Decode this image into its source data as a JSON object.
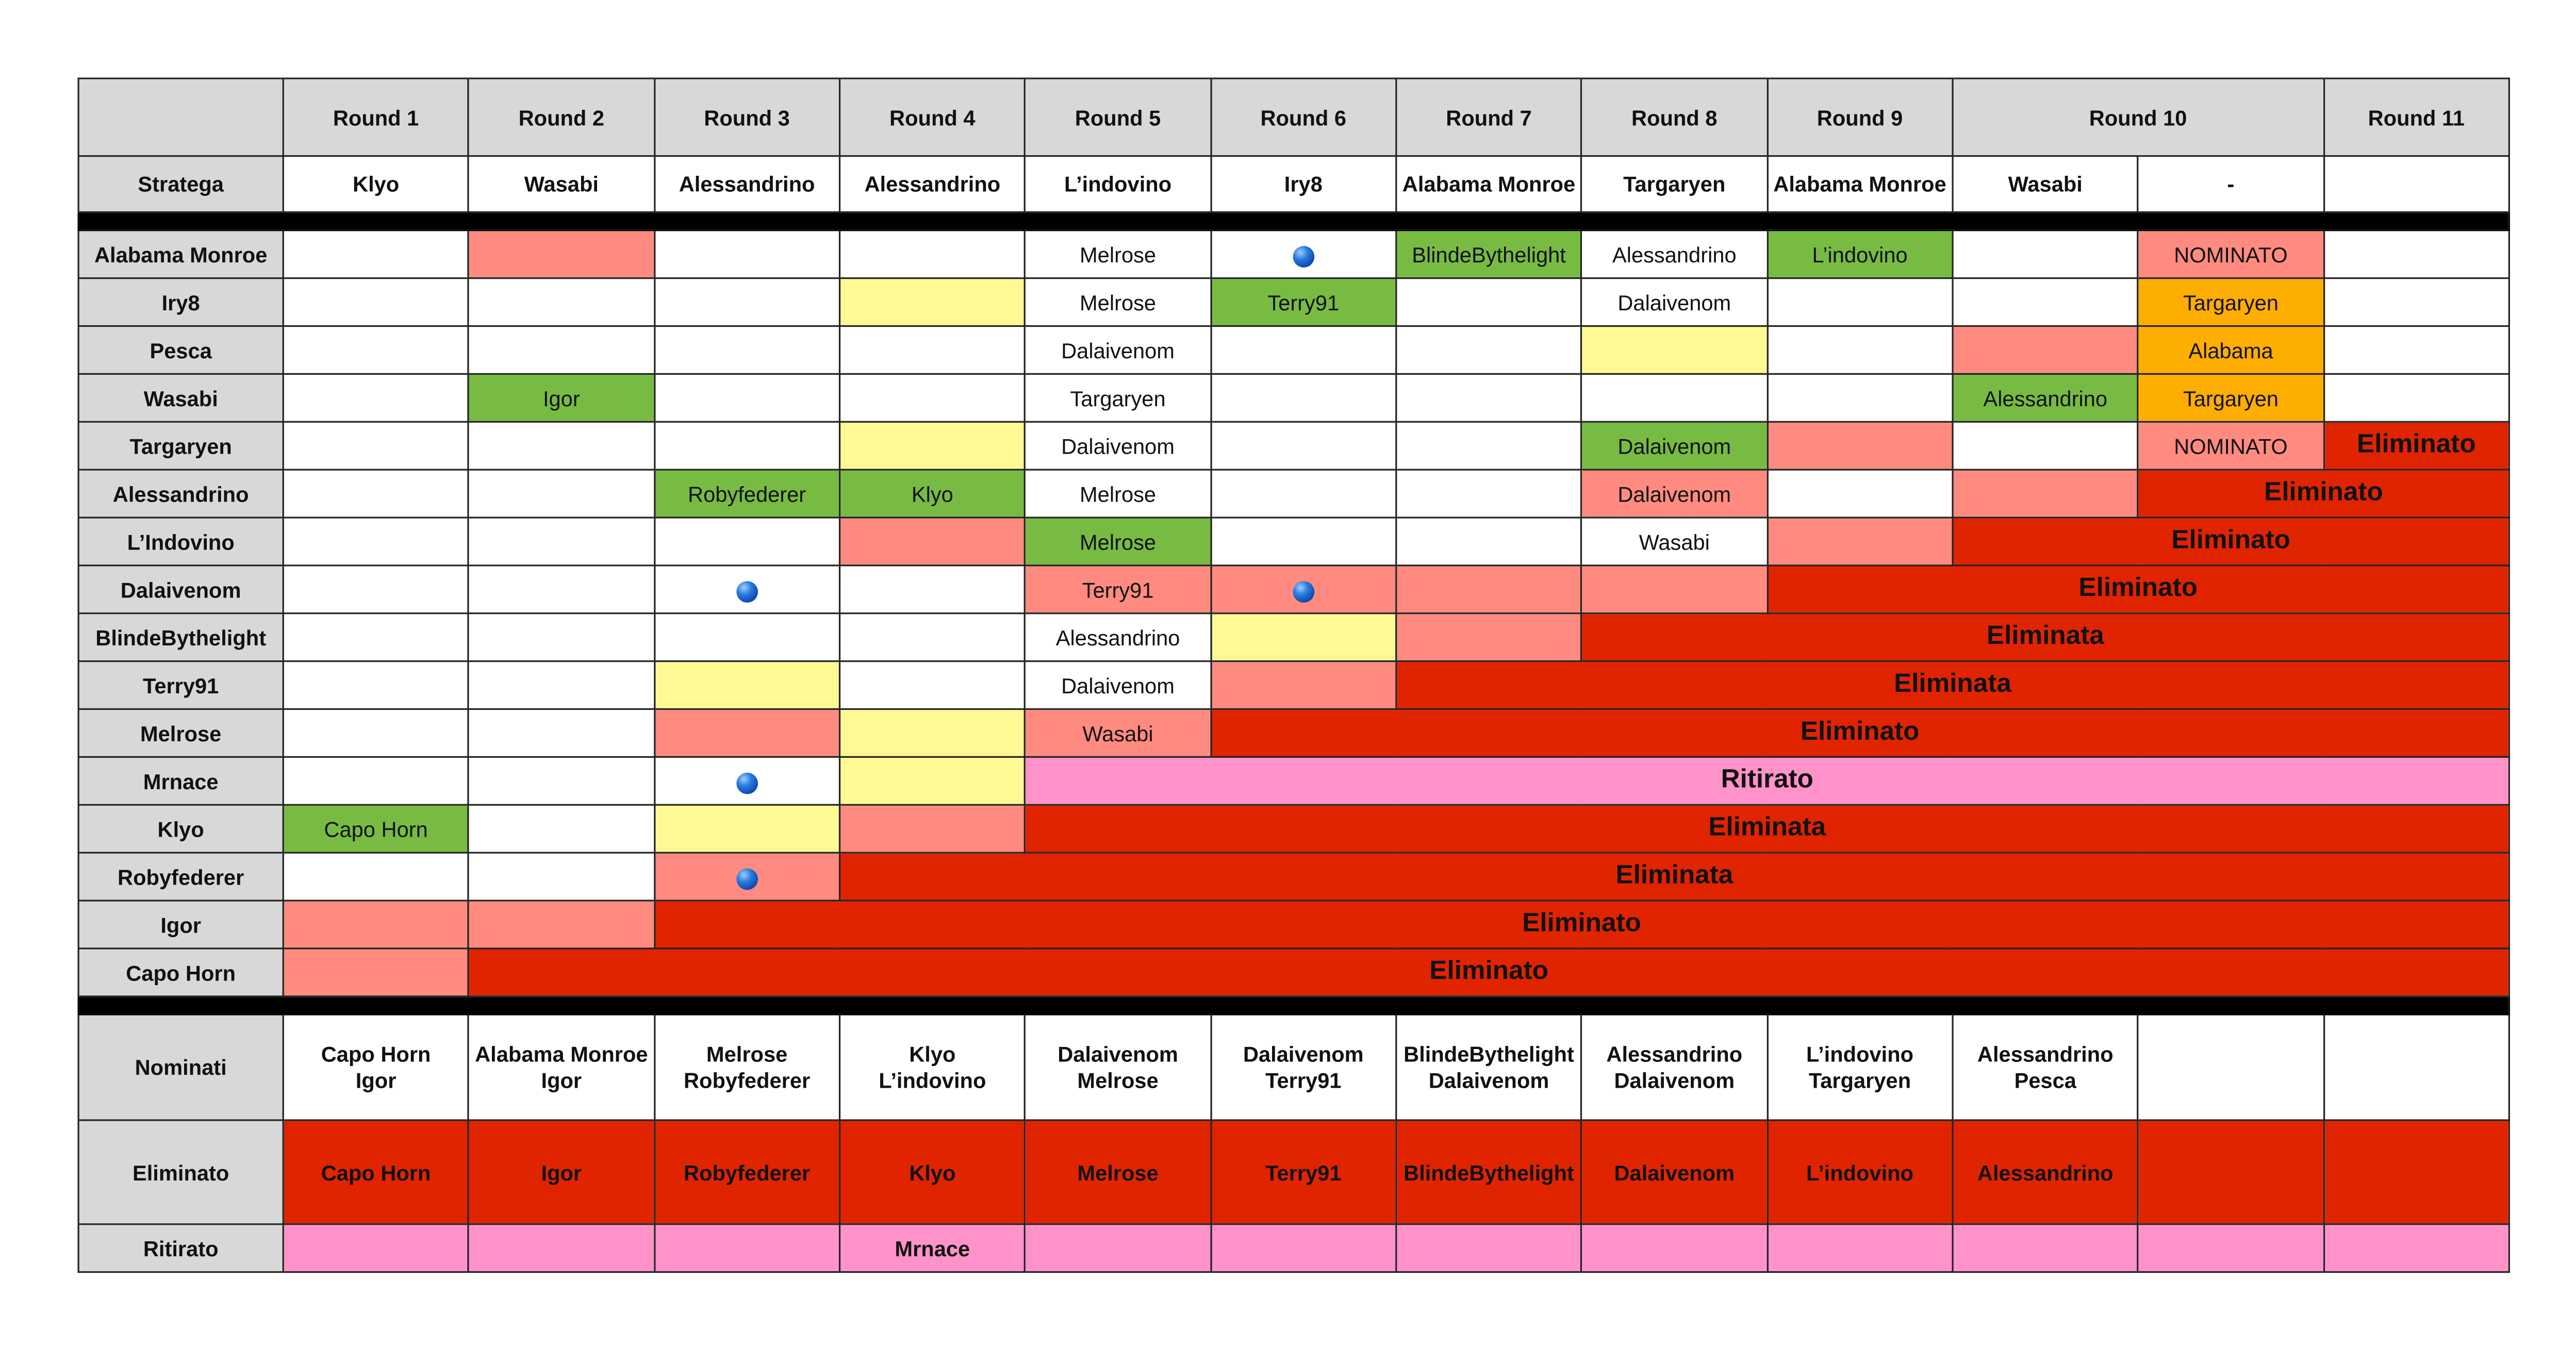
{
  "colors": {
    "w": "#ffffff",
    "r": "#ff8b80",
    "g": "#78bb43",
    "y": "#fff994",
    "o": "#feae00",
    "E": "#e02400",
    "P": "#ff93c9",
    "grey": "#d8d8d8"
  },
  "header": {
    "rounds": [
      {
        "label": "Round 1",
        "span": 1
      },
      {
        "label": "Round 2",
        "span": 1
      },
      {
        "label": "Round 3",
        "span": 1
      },
      {
        "label": "Round 4",
        "span": 1
      },
      {
        "label": "Round 5",
        "span": 1
      },
      {
        "label": "Round 6",
        "span": 1
      },
      {
        "label": "Round 7",
        "span": 1
      },
      {
        "label": "Round 8",
        "span": 1
      },
      {
        "label": "Round 9",
        "span": 1
      },
      {
        "label": "Round 10",
        "span": 2
      },
      {
        "label": "Round 11",
        "span": 1
      }
    ],
    "stratega_label": "Stratega",
    "stratega": [
      "Klyo",
      "Wasabi",
      "Alessandrino",
      "Alessandrino",
      "L’indovino",
      "Iry8",
      "Alabama Monroe",
      "Targaryen",
      "Alabama Monroe",
      "Wasabi",
      "-",
      ""
    ]
  },
  "dot_icon": "blue-ball-icon",
  "players": [
    {
      "name": "Alabama Monroe",
      "cells": [
        {
          "c": "w"
        },
        {
          "c": "r"
        },
        {
          "c": "w"
        },
        {
          "c": "w"
        },
        {
          "t": "Melrose",
          "c": "w"
        },
        {
          "dot": true,
          "c": "w"
        },
        {
          "t": "BlindeBythelight",
          "c": "g"
        },
        {
          "t": "Alessandrino",
          "c": "w"
        },
        {
          "t": "L’indovino",
          "c": "g"
        },
        {
          "c": "w"
        },
        {
          "t": "NOMINATO",
          "c": "r"
        },
        {
          "c": "w"
        }
      ]
    },
    {
      "name": "Iry8",
      "cells": [
        {
          "c": "w"
        },
        {
          "c": "w"
        },
        {
          "c": "w"
        },
        {
          "c": "y"
        },
        {
          "t": "Melrose",
          "c": "w"
        },
        {
          "t": "Terry91",
          "c": "g"
        },
        {
          "c": "w"
        },
        {
          "t": "Dalaivenom",
          "c": "w"
        },
        {
          "c": "w"
        },
        {
          "c": "w"
        },
        {
          "t": "Targaryen",
          "c": "o"
        },
        {
          "c": "w"
        }
      ]
    },
    {
      "name": "Pesca",
      "cells": [
        {
          "c": "w"
        },
        {
          "c": "w"
        },
        {
          "c": "w"
        },
        {
          "c": "w"
        },
        {
          "t": "Dalaivenom",
          "c": "w"
        },
        {
          "c": "w"
        },
        {
          "c": "w"
        },
        {
          "c": "y"
        },
        {
          "c": "w"
        },
        {
          "c": "r"
        },
        {
          "t": "Alabama",
          "c": "o"
        },
        {
          "c": "w"
        }
      ]
    },
    {
      "name": "Wasabi",
      "cells": [
        {
          "c": "w"
        },
        {
          "t": "Igor",
          "c": "g"
        },
        {
          "c": "w"
        },
        {
          "c": "w"
        },
        {
          "t": "Targaryen",
          "c": "w"
        },
        {
          "c": "w"
        },
        {
          "c": "w"
        },
        {
          "c": "w"
        },
        {
          "c": "w"
        },
        {
          "t": "Alessandrino",
          "c": "g"
        },
        {
          "t": "Targaryen",
          "c": "o"
        },
        {
          "c": "w"
        }
      ]
    },
    {
      "name": "Targaryen",
      "cells": [
        {
          "c": "w"
        },
        {
          "c": "w"
        },
        {
          "c": "w"
        },
        {
          "c": "y"
        },
        {
          "t": "Dalaivenom",
          "c": "w"
        },
        {
          "c": "w"
        },
        {
          "c": "w"
        },
        {
          "t": "Dalaivenom",
          "c": "g"
        },
        {
          "c": "r"
        },
        {
          "c": "w"
        },
        {
          "t": "NOMINATO",
          "c": "r"
        },
        {
          "t": "Eliminato",
          "c": "E",
          "span": 1,
          "big": true
        }
      ]
    },
    {
      "name": "Alessandrino",
      "cells": [
        {
          "c": "w"
        },
        {
          "c": "w"
        },
        {
          "t": "Robyfederer",
          "c": "g"
        },
        {
          "t": "Klyo",
          "c": "g"
        },
        {
          "t": "Melrose",
          "c": "w"
        },
        {
          "c": "w"
        },
        {
          "c": "w"
        },
        {
          "t": "Dalaivenom",
          "c": "r"
        },
        {
          "c": "w"
        },
        {
          "c": "r"
        },
        {
          "t": "Eliminato",
          "c": "E",
          "span": 2,
          "big": true
        }
      ]
    },
    {
      "name": "L’Indovino",
      "cells": [
        {
          "c": "w"
        },
        {
          "c": "w"
        },
        {
          "c": "w"
        },
        {
          "c": "r"
        },
        {
          "t": "Melrose",
          "c": "g"
        },
        {
          "c": "w"
        },
        {
          "c": "w"
        },
        {
          "t": "Wasabi",
          "c": "w"
        },
        {
          "c": "r"
        },
        {
          "t": "Eliminato",
          "c": "E",
          "span": 3,
          "big": true
        }
      ]
    },
    {
      "name": "Dalaivenom",
      "cells": [
        {
          "c": "w"
        },
        {
          "c": "w"
        },
        {
          "dot": true,
          "c": "w"
        },
        {
          "c": "w"
        },
        {
          "t": "Terry91",
          "c": "r"
        },
        {
          "dot": true,
          "c": "r"
        },
        {
          "c": "r"
        },
        {
          "c": "r"
        },
        {
          "t": "Eliminato",
          "c": "E",
          "span": 4,
          "big": true
        }
      ]
    },
    {
      "name": "BlindeBythelight",
      "cells": [
        {
          "c": "w"
        },
        {
          "c": "w"
        },
        {
          "c": "w"
        },
        {
          "c": "w"
        },
        {
          "t": "Alessandrino",
          "c": "w"
        },
        {
          "c": "y"
        },
        {
          "c": "r"
        },
        {
          "t": "Eliminata",
          "c": "E",
          "span": 5,
          "big": true
        }
      ]
    },
    {
      "name": "Terry91",
      "cells": [
        {
          "c": "w"
        },
        {
          "c": "w"
        },
        {
          "c": "y"
        },
        {
          "c": "w"
        },
        {
          "t": "Dalaivenom",
          "c": "w"
        },
        {
          "c": "r"
        },
        {
          "t": "Eliminata",
          "c": "E",
          "span": 6,
          "big": true
        }
      ]
    },
    {
      "name": "Melrose",
      "cells": [
        {
          "c": "w"
        },
        {
          "c": "w"
        },
        {
          "c": "r"
        },
        {
          "c": "y"
        },
        {
          "t": "Wasabi",
          "c": "r"
        },
        {
          "t": "Eliminato",
          "c": "E",
          "span": 7,
          "big": true
        }
      ]
    },
    {
      "name": "Mrnace",
      "cells": [
        {
          "c": "w"
        },
        {
          "c": "w"
        },
        {
          "dot": true,
          "c": "w"
        },
        {
          "c": "y"
        },
        {
          "t": "Ritirato",
          "c": "P",
          "span": 8,
          "big": true
        }
      ]
    },
    {
      "name": "Klyo",
      "cells": [
        {
          "t": "Capo Horn",
          "c": "g"
        },
        {
          "c": "w"
        },
        {
          "c": "y"
        },
        {
          "c": "r"
        },
        {
          "t": "Eliminata",
          "c": "E",
          "span": 8,
          "big": true
        }
      ]
    },
    {
      "name": "Robyfederer",
      "cells": [
        {
          "c": "w"
        },
        {
          "c": "w"
        },
        {
          "dot": true,
          "c": "r"
        },
        {
          "t": "Eliminata",
          "c": "E",
          "span": 9,
          "big": true
        }
      ]
    },
    {
      "name": "Igor",
      "cells": [
        {
          "c": "r"
        },
        {
          "c": "r"
        },
        {
          "t": "Eliminato",
          "c": "E",
          "span": 10,
          "big": true
        }
      ]
    },
    {
      "name": "Capo Horn",
      "cells": [
        {
          "c": "r"
        },
        {
          "t": "Eliminato",
          "c": "E",
          "span": 11,
          "big": true
        }
      ]
    }
  ],
  "footer": {
    "nominati_label": "Nominati",
    "nominati": [
      [
        "Capo Horn",
        "Igor"
      ],
      [
        "Alabama Monroe",
        "Igor"
      ],
      [
        "Melrose",
        "Robyfederer"
      ],
      [
        "Klyo",
        "L’indovino"
      ],
      [
        "Dalaivenom",
        "Melrose"
      ],
      [
        "Dalaivenom",
        "Terry91"
      ],
      [
        "BlindeBythelight",
        "Dalaivenom"
      ],
      [
        "Alessandrino",
        "Dalaivenom"
      ],
      [
        "L’indovino",
        "Targaryen"
      ],
      [
        "Alessandrino",
        "Pesca"
      ],
      [
        "",
        ""
      ],
      [
        "",
        ""
      ]
    ],
    "eliminato_label": "Eliminato",
    "eliminato": [
      "Capo Horn",
      "Igor",
      "Robyfederer",
      "Klyo",
      "Melrose",
      "Terry91",
      "BlindeBythelight",
      "Dalaivenom",
      "L’indovino",
      "Alessandrino",
      "",
      ""
    ],
    "ritirato_label": "Ritirato",
    "ritirato": [
      "",
      "",
      "",
      "Mrnace",
      "",
      "",
      "",
      "",
      "",
      "",
      "",
      ""
    ]
  }
}
